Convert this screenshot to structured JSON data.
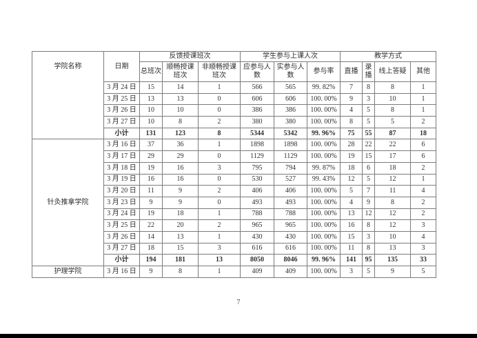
{
  "page": {
    "number": "7"
  },
  "colors": {
    "page_background": "#ffffff",
    "table_border": "#7a7a7a",
    "text": "#2e2e2e",
    "bottom_bar": "#000000"
  },
  "table": {
    "header": {
      "college": "学院名称",
      "date": "日期",
      "groups": [
        {
          "label": "反馈授课班次",
          "columns": [
            "总班次",
            "顺畅授课班次",
            "非顺畅授课班次"
          ]
        },
        {
          "label": "学生参与上课人次",
          "columns": [
            "应参与人数",
            "实参与人数",
            "参与率"
          ]
        },
        {
          "label": "教学方式",
          "columns": [
            "直播",
            "录播",
            "线上答疑",
            "其他"
          ]
        }
      ]
    },
    "body_groups": [
      {
        "college": "",
        "rows": [
          {
            "date": "3 月 24 日",
            "values": [
              "15",
              "14",
              "1",
              "566",
              "565",
              "99. 82%",
              "7",
              "8",
              "8",
              "1"
            ],
            "bold": false
          },
          {
            "date": "3 月 25 日",
            "values": [
              "13",
              "13",
              "0",
              "606",
              "606",
              "100. 00%",
              "9",
              "3",
              "10",
              "1"
            ],
            "bold": false
          },
          {
            "date": "3 月 26 日",
            "values": [
              "10",
              "10",
              "0",
              "386",
              "386",
              "100. 00%",
              "4",
              "5",
              "8",
              "1"
            ],
            "bold": false
          },
          {
            "date": "3 月 27 日",
            "values": [
              "10",
              "8",
              "2",
              "380",
              "380",
              "100. 00%",
              "8",
              "5",
              "5",
              "2"
            ],
            "bold": false
          },
          {
            "date": "小计",
            "values": [
              "131",
              "123",
              "8",
              "5344",
              "5342",
              "99. 96%",
              "75",
              "55",
              "87",
              "18"
            ],
            "bold": true
          }
        ]
      },
      {
        "college": "针灸推拿学院",
        "rows": [
          {
            "date": "3 月 16 日",
            "values": [
              "37",
              "36",
              "1",
              "1898",
              "1898",
              "100. 00%",
              "28",
              "22",
              "22",
              "6"
            ],
            "bold": false
          },
          {
            "date": "3 月 17 日",
            "values": [
              "29",
              "29",
              "0",
              "1129",
              "1129",
              "100. 00%",
              "19",
              "15",
              "17",
              "6"
            ],
            "bold": false
          },
          {
            "date": "3 月 18 日",
            "values": [
              "19",
              "16",
              "3",
              "795",
              "794",
              "99. 87%",
              "18",
              "6",
              "18",
              "2"
            ],
            "bold": false
          },
          {
            "date": "3 月 19 日",
            "values": [
              "16",
              "16",
              "0",
              "530",
              "527",
              "99. 43%",
              "12",
              "5",
              "12",
              "1"
            ],
            "bold": false
          },
          {
            "date": "3 月 20 日",
            "values": [
              "11",
              "9",
              "2",
              "406",
              "406",
              "100. 00%",
              "5",
              "7",
              "11",
              "4"
            ],
            "bold": false
          },
          {
            "date": "3 月 23 日",
            "values": [
              "9",
              "9",
              "0",
              "493",
              "493",
              "100. 00%",
              "4",
              "9",
              "8",
              "2"
            ],
            "bold": false
          },
          {
            "date": "3 月 24 日",
            "values": [
              "19",
              "18",
              "1",
              "788",
              "788",
              "100. 00%",
              "13",
              "12",
              "12",
              "2"
            ],
            "bold": false
          },
          {
            "date": "3 月 25 日",
            "values": [
              "22",
              "20",
              "2",
              "965",
              "965",
              "100. 00%",
              "16",
              "8",
              "12",
              "3"
            ],
            "bold": false
          },
          {
            "date": "3 月 26 日",
            "values": [
              "14",
              "13",
              "1",
              "430",
              "430",
              "100. 00%",
              "15",
              "3",
              "10",
              "4"
            ],
            "bold": false
          },
          {
            "date": "3 月 27 日",
            "values": [
              "18",
              "15",
              "3",
              "616",
              "616",
              "100. 00%",
              "11",
              "8",
              "13",
              "3"
            ],
            "bold": false
          },
          {
            "date": "小计",
            "values": [
              "194",
              "181",
              "13",
              "8050",
              "8046",
              "99. 96%",
              "141",
              "95",
              "135",
              "33"
            ],
            "bold": true
          }
        ]
      },
      {
        "college": "护理学院",
        "rows": [
          {
            "date": "3 月 16 日",
            "values": [
              "9",
              "8",
              "1",
              "409",
              "409",
              "100. 00%",
              "3",
              "5",
              "9",
              "5"
            ],
            "bold": false
          }
        ]
      }
    ]
  }
}
